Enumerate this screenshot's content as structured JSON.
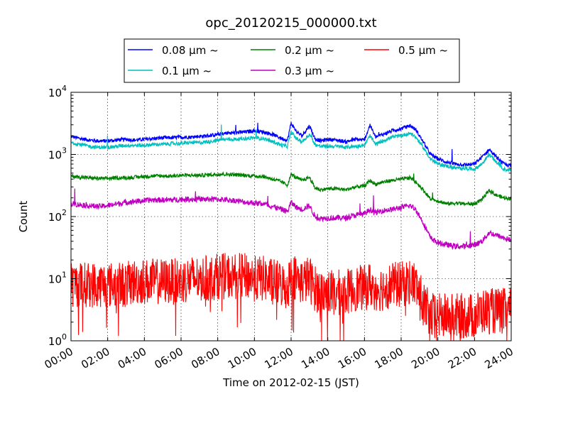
{
  "chart_data": {
    "type": "line",
    "title": "opc_20120215_000000.txt",
    "xlabel": "Time on 2012-02-15 (JST)",
    "ylabel": "Count",
    "x_unit": "hours",
    "xlim": [
      "00:00",
      "24:00"
    ],
    "ylim": [
      1,
      10000
    ],
    "yscale": "log",
    "grid": true,
    "legend_placement": "top-center, above plot, 3 columns",
    "xticks": [
      "00:00",
      "02:00",
      "04:00",
      "06:00",
      "08:00",
      "10:00",
      "12:00",
      "14:00",
      "16:00",
      "18:00",
      "20:00",
      "22:00",
      "24:00"
    ],
    "yticks": [
      {
        "value": 1,
        "base": "10",
        "exp": "0"
      },
      {
        "value": 10,
        "base": "10",
        "exp": "1"
      },
      {
        "value": 100,
        "base": "10",
        "exp": "2"
      },
      {
        "value": 1000,
        "base": "10",
        "exp": "3"
      },
      {
        "value": 10000,
        "base": "10",
        "exp": "4"
      }
    ],
    "x_hours": [
      0,
      0.5,
      1,
      1.5,
      2,
      2.5,
      3,
      3.5,
      4,
      4.5,
      5,
      5.5,
      6,
      6.5,
      7,
      7.5,
      8,
      8.5,
      9,
      9.5,
      10,
      10.5,
      11,
      11.5,
      11.8,
      12,
      12.3,
      12.6,
      13,
      13.3,
      13.6,
      14,
      14.5,
      15,
      15.5,
      16,
      16.3,
      16.6,
      17,
      17.5,
      18,
      18.5,
      18.8,
      19.2,
      19.6,
      20,
      20.5,
      21,
      21.5,
      22,
      22.4,
      22.8,
      23.2,
      23.6,
      24
    ],
    "series": [
      {
        "name": "0.08 μm ~",
        "color": "#0000ff",
        "values": [
          1950,
          1800,
          1700,
          1650,
          1650,
          1700,
          1750,
          1700,
          1750,
          1800,
          1850,
          1850,
          1900,
          1900,
          1950,
          2000,
          2100,
          2200,
          2250,
          2300,
          2400,
          2300,
          2100,
          1800,
          1700,
          3200,
          2300,
          2000,
          2900,
          1800,
          1650,
          1750,
          1700,
          1600,
          1750,
          1700,
          3000,
          1900,
          2100,
          2400,
          2600,
          2900,
          2500,
          1600,
          1000,
          850,
          750,
          700,
          680,
          700,
          900,
          1200,
          900,
          700,
          650
        ]
      },
      {
        "name": "0.1 μm ~",
        "color": "#00bfbf",
        "values": [
          1550,
          1450,
          1350,
          1300,
          1300,
          1350,
          1400,
          1400,
          1400,
          1450,
          1450,
          1500,
          1500,
          1550,
          1550,
          1600,
          1700,
          1750,
          1750,
          1800,
          1850,
          1800,
          1600,
          1400,
          1350,
          2300,
          1800,
          1600,
          2100,
          1450,
          1350,
          1350,
          1350,
          1300,
          1350,
          1400,
          2000,
          1450,
          1650,
          1900,
          2000,
          2200,
          1900,
          1300,
          850,
          700,
          650,
          600,
          600,
          580,
          700,
          1000,
          750,
          580,
          550
        ]
      },
      {
        "name": "0.2 μm ~",
        "color": "#008000",
        "values": [
          450,
          430,
          420,
          410,
          410,
          420,
          420,
          430,
          440,
          450,
          450,
          450,
          460,
          460,
          460,
          470,
          480,
          480,
          470,
          460,
          450,
          440,
          400,
          360,
          320,
          480,
          420,
          380,
          430,
          290,
          270,
          280,
          280,
          270,
          300,
          310,
          380,
          330,
          360,
          380,
          400,
          420,
          360,
          270,
          190,
          180,
          160,
          165,
          160,
          160,
          190,
          260,
          220,
          200,
          195
        ]
      },
      {
        "name": "0.3 μm ~",
        "color": "#bf00bf",
        "values": [
          160,
          155,
          150,
          145,
          150,
          160,
          170,
          175,
          180,
          185,
          185,
          185,
          190,
          190,
          190,
          190,
          190,
          185,
          180,
          170,
          165,
          160,
          145,
          130,
          120,
          170,
          140,
          130,
          150,
          100,
          92,
          95,
          95,
          95,
          105,
          110,
          130,
          115,
          125,
          130,
          140,
          150,
          130,
          80,
          45,
          38,
          35,
          33,
          33,
          35,
          40,
          55,
          50,
          45,
          42
        ]
      },
      {
        "name": "0.5 μm ~",
        "color": "#ff0000",
        "values": [
          8,
          8,
          8,
          8,
          8,
          8,
          8,
          9,
          9,
          9,
          9,
          9,
          9,
          10,
          10,
          10,
          11,
          11,
          11,
          11,
          10,
          10,
          9,
          8,
          7,
          12,
          10,
          9,
          10,
          7,
          6,
          6,
          6,
          6,
          7,
          7,
          8,
          7,
          7,
          8,
          8,
          9,
          8,
          4,
          2.5,
          2.5,
          2.5,
          2.5,
          2.5,
          2.5,
          3,
          3,
          3,
          3,
          3
        ]
      }
    ]
  }
}
